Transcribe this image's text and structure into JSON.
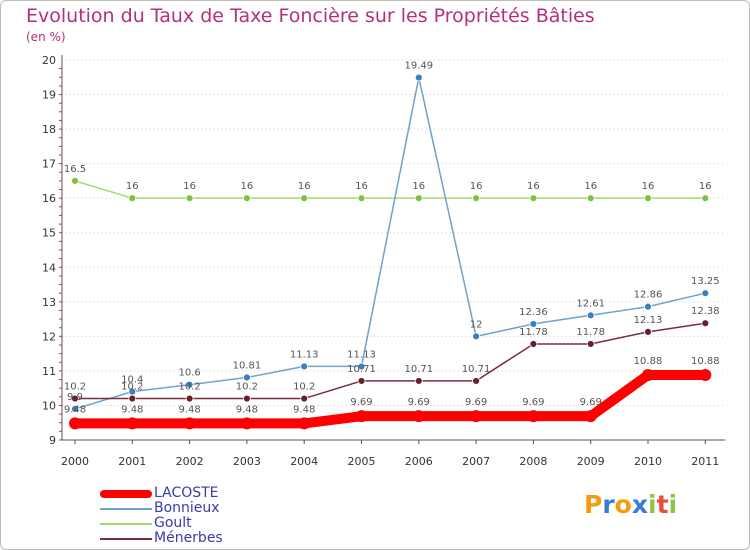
{
  "title": "Evolution du Taux de Taxe Foncière sur les Propriétés Bâties",
  "subtitle": "(en %)",
  "logo": {
    "letters": [
      "P",
      "r",
      "o",
      "x",
      "i",
      "t",
      "i"
    ],
    "colors": [
      "#f39c12",
      "#3a7bd5",
      "#f39c12",
      "#3a7bd5",
      "#8dc63f",
      "#e74c3c",
      "#8dc63f"
    ]
  },
  "chart_data": {
    "type": "line",
    "title": "Evolution du Taux de Taxe Foncière sur les Propriétés Bâties",
    "ylabel": "(en %)",
    "xlabel": "",
    "categories": [
      "2000",
      "2001",
      "2002",
      "2003",
      "2004",
      "2005",
      "2006",
      "2007",
      "2008",
      "2009",
      "2010",
      "2011"
    ],
    "ylim": [
      9,
      20
    ],
    "yticks": [
      "9",
      "10",
      "11",
      "12",
      "13",
      "14",
      "15",
      "16",
      "17",
      "18",
      "19",
      "20"
    ],
    "grid": "horizontal dotted",
    "legend_position": "bottom-left",
    "series": [
      {
        "name": "LACOSTE",
        "color": "#ff0000",
        "markerColor": "#ff0000",
        "values": [
          9.48,
          9.48,
          9.48,
          9.48,
          9.48,
          9.69,
          9.69,
          9.69,
          9.69,
          9.69,
          10.88,
          10.88
        ],
        "labels": [
          "9.48",
          "9.48",
          "9.48",
          "9.48",
          "9.48",
          "9.69",
          "9.69",
          "9.69",
          "9.69",
          "9.69",
          "10.88",
          "10.88"
        ]
      },
      {
        "name": "Bonnieux",
        "color": "#6ea2cf",
        "markerColor": "#3a7fc0",
        "values": [
          9.9,
          10.4,
          10.6,
          10.81,
          11.13,
          11.13,
          19.49,
          12,
          12.36,
          12.61,
          12.86,
          13.25
        ],
        "labels": [
          "9.9",
          "10.4",
          "10.6",
          "10.81",
          "11.13",
          "11.13",
          "19.49",
          "12",
          "12.36",
          "12.61",
          "12.86",
          "13.25"
        ]
      },
      {
        "name": "Goult",
        "color": "#a6d76d",
        "markerColor": "#7cc242",
        "values": [
          16.5,
          16,
          16,
          16,
          16,
          16,
          16,
          16,
          16,
          16,
          16,
          16
        ],
        "labels": [
          "16.5",
          "16",
          "16",
          "16",
          "16",
          "16",
          "16",
          "16",
          "16",
          "16",
          "16",
          "16"
        ]
      },
      {
        "name": "Ménerbes",
        "color": "#7a2e3b",
        "markerColor": "#6b1f2c",
        "values": [
          10.2,
          10.2,
          10.2,
          10.2,
          10.2,
          10.71,
          10.71,
          10.71,
          11.78,
          11.78,
          12.13,
          12.38
        ],
        "labels": [
          "10.2",
          "10.2",
          "10.2",
          "10.2",
          "10.2",
          "10.71",
          "10.71",
          "10.71",
          "11.78",
          "11.78",
          "12.13",
          "12.38"
        ]
      }
    ]
  }
}
